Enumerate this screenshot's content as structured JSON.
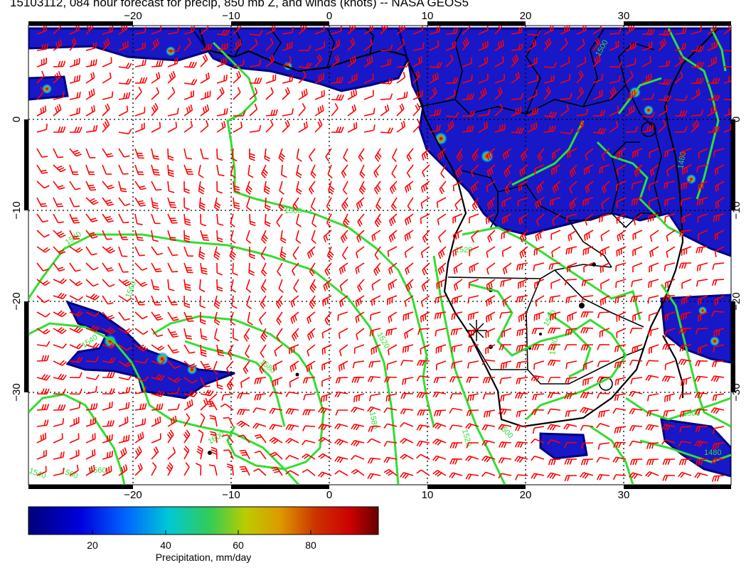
{
  "title": "15103112, 084 hour forecast for precip, 850 mb Z, and winds (knots) -- NASA GEOS5",
  "map": {
    "lon_ticks": [
      "−20",
      "−10",
      "0",
      "10",
      "20",
      "30"
    ],
    "lat_ticks": [
      "0",
      "−10",
      "−20",
      "−30"
    ],
    "contour_labels": [
      "1500",
      "1500",
      "1520",
      "1540",
      "1540",
      "1560",
      "1580",
      "1580",
      "1560",
      "1520",
      "1600",
      "1520",
      "1500",
      "1500",
      "1480",
      "1480",
      "1480",
      "1540",
      "1560",
      "1560"
    ],
    "colors": {
      "precip_low": "#000080",
      "precip_mid": "#0000dd",
      "contour": "#33dd33",
      "wind_barb": "#ff0000",
      "border": "#000000"
    }
  },
  "colorbar": {
    "tick_labels": [
      "20",
      "40",
      "60",
      "80"
    ],
    "label": "Precipitation, mm/day"
  }
}
